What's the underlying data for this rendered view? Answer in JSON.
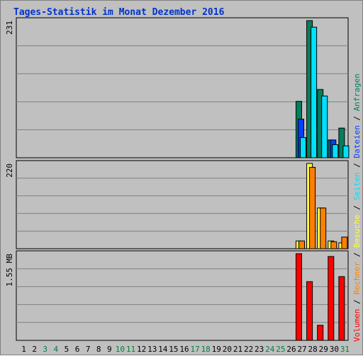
{
  "chart_data": {
    "type": "bar",
    "title": "Tages-Statistik im Monat Dezember 2016",
    "days": [
      "1",
      "2",
      "3",
      "4",
      "5",
      "6",
      "7",
      "8",
      "9",
      "10",
      "11",
      "12",
      "13",
      "14",
      "15",
      "16",
      "17",
      "18",
      "19",
      "20",
      "21",
      "22",
      "23",
      "24",
      "25",
      "26",
      "27",
      "28",
      "29",
      "30",
      "31"
    ],
    "weekend_days": [
      "3",
      "4",
      "10",
      "11",
      "17",
      "18",
      "24",
      "25",
      "31"
    ],
    "colors": {
      "background": "#c0c0c0",
      "title": "#0033cc",
      "grid": "#808080",
      "weekday_label": "#000000",
      "weekend_label": "#008040",
      "anfragen": "#007f5f",
      "dateien": "#0040ff",
      "seiten": "#00e0ff",
      "besuche": "#ffff40",
      "rechner": "#ff8000",
      "volumen": "#ff0000"
    },
    "legend": [
      {
        "label": "Volumen",
        "color": "#ff0000"
      },
      {
        "label": "Rechner",
        "color": "#ff8000"
      },
      {
        "label": "Besuche",
        "color": "#ffff40"
      },
      {
        "label": "Seiten",
        "color": "#00e0ff"
      },
      {
        "label": "Dateien",
        "color": "#0040ff"
      },
      {
        "label": "Anfragen",
        "color": "#007f5f"
      }
    ],
    "legend_separator": "/",
    "panels": [
      {
        "ymax_label": "231",
        "ylim": [
          0,
          231
        ],
        "series": [
          {
            "name": "Anfragen",
            "color": "#007f5f",
            "values": [
              0,
              0,
              0,
              0,
              0,
              0,
              0,
              0,
              0,
              0,
              0,
              0,
              0,
              0,
              0,
              0,
              0,
              0,
              0,
              0,
              0,
              0,
              0,
              0,
              0,
              0,
              95,
              231,
              115,
              30,
              50
            ]
          },
          {
            "name": "Dateien",
            "color": "#0040ff",
            "values": [
              0,
              0,
              0,
              0,
              0,
              0,
              0,
              0,
              0,
              0,
              0,
              0,
              0,
              0,
              0,
              0,
              0,
              0,
              0,
              0,
              0,
              0,
              0,
              0,
              0,
              0,
              65,
              0,
              0,
              30,
              0
            ]
          },
          {
            "name": "Seiten",
            "color": "#00e0ff",
            "values": [
              0,
              0,
              0,
              0,
              0,
              0,
              0,
              0,
              0,
              0,
              0,
              0,
              0,
              0,
              0,
              0,
              0,
              0,
              0,
              0,
              0,
              0,
              0,
              0,
              0,
              0,
              34,
              220,
              104,
              22,
              20
            ]
          }
        ]
      },
      {
        "ymax_label": "220",
        "ylim": [
          0,
          220
        ],
        "series": [
          {
            "name": "Besuche",
            "color": "#ffff40",
            "values": [
              0,
              0,
              0,
              0,
              0,
              0,
              0,
              0,
              0,
              0,
              0,
              0,
              0,
              0,
              0,
              0,
              0,
              0,
              0,
              0,
              0,
              0,
              0,
              0,
              0,
              0,
              20,
              220,
              105,
              20,
              15
            ]
          },
          {
            "name": "Rechner",
            "color": "#ff8000",
            "values": [
              0,
              0,
              0,
              0,
              0,
              0,
              0,
              0,
              0,
              0,
              0,
              0,
              0,
              0,
              0,
              0,
              0,
              0,
              0,
              0,
              0,
              0,
              0,
              0,
              0,
              0,
              20,
              210,
              105,
              18,
              30
            ]
          }
        ]
      },
      {
        "ymax_label": "1.55 MB",
        "ylim": [
          0,
          1.55
        ],
        "series": [
          {
            "name": "Volumen",
            "color": "#ff0000",
            "values": [
              0,
              0,
              0,
              0,
              0,
              0,
              0,
              0,
              0,
              0,
              0,
              0,
              0,
              0,
              0,
              0,
              0,
              0,
              0,
              0,
              0,
              0,
              0,
              0,
              0,
              0,
              1.55,
              1.05,
              0.27,
              1.5,
              1.14
            ]
          }
        ]
      }
    ]
  }
}
